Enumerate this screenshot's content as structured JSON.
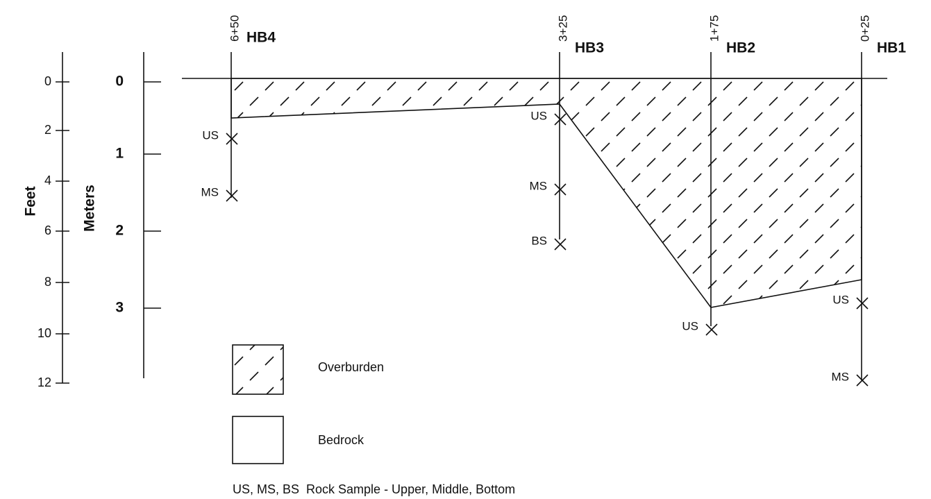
{
  "feet_axis": {
    "title": "Feet",
    "ticks": [
      "0",
      "2",
      "4",
      "6",
      "8",
      "10",
      "12"
    ]
  },
  "meters_axis": {
    "title": "Meters",
    "ticks": [
      "0",
      "1",
      "2",
      "3"
    ]
  },
  "boreholes": [
    {
      "station": "6+50",
      "name": "HB4",
      "samples": [
        "US",
        "MS"
      ]
    },
    {
      "station": "3+25",
      "name": "HB3",
      "samples": [
        "US",
        "MS",
        "BS"
      ]
    },
    {
      "station": "1+75",
      "name": "HB2",
      "samples": [
        "US"
      ]
    },
    {
      "station": "0+25",
      "name": "HB1",
      "samples": [
        "US",
        "MS"
      ]
    }
  ],
  "legend": {
    "items": [
      "Overburden",
      "Bedrock"
    ],
    "note": "US, MS, BS  Rock Sample - Upper, Middle, Bottom"
  }
}
